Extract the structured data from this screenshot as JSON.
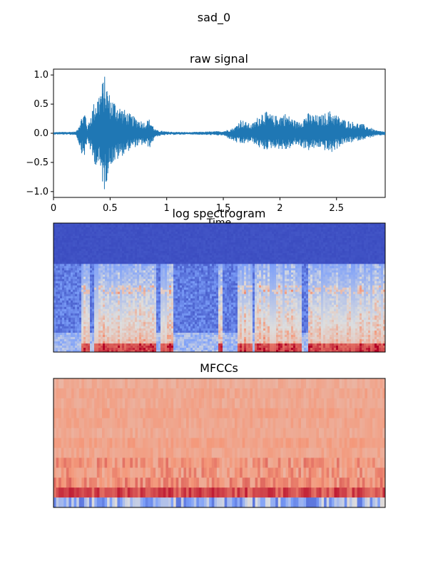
{
  "figure": {
    "title": "sad_0"
  },
  "chart_data": [
    {
      "type": "line",
      "title": "raw signal",
      "xlabel": "Time",
      "ylabel": "",
      "xlim": [
        0,
        2.93
      ],
      "ylim": [
        -1.1,
        1.1
      ],
      "x_ticks": [
        0,
        0.5,
        1,
        1.5,
        2,
        2.5
      ],
      "x_tick_labels": [
        "0",
        "0.5",
        "1",
        "1.5",
        "2",
        "2.5"
      ],
      "y_ticks": [
        -1.0,
        -0.5,
        0.0,
        0.5,
        1.0
      ],
      "y_tick_labels": [
        "−1.0",
        "−0.5",
        "0.0",
        "0.5",
        "1.0"
      ],
      "grid": false,
      "series_color": "#1f77b4",
      "envelope": {
        "x": [
          0,
          0.2,
          0.25,
          0.28,
          0.3,
          0.35,
          0.4,
          0.45,
          0.5,
          0.55,
          0.6,
          0.7,
          0.8,
          0.85,
          0.9,
          1.0,
          1.2,
          1.5,
          1.6,
          1.65,
          1.75,
          1.85,
          1.95,
          2.05,
          2.15,
          2.25,
          2.35,
          2.45,
          2.55,
          2.65,
          2.75,
          2.85,
          2.93
        ],
        "upper": [
          0.02,
          0.03,
          0.3,
          0.4,
          0.1,
          0.5,
          0.7,
          1.0,
          0.65,
          0.55,
          0.45,
          0.3,
          0.2,
          0.25,
          0.06,
          0.03,
          0.02,
          0.04,
          0.1,
          0.25,
          0.15,
          0.4,
          0.3,
          0.35,
          0.2,
          0.35,
          0.3,
          0.4,
          0.25,
          0.2,
          0.15,
          0.05,
          0.03
        ],
        "lower": [
          -0.02,
          -0.03,
          -0.35,
          -0.4,
          -0.1,
          -0.5,
          -0.6,
          -1.0,
          -0.55,
          -0.5,
          -0.4,
          -0.25,
          -0.2,
          -0.25,
          -0.06,
          -0.03,
          -0.02,
          -0.04,
          -0.15,
          -0.2,
          -0.15,
          -0.3,
          -0.25,
          -0.3,
          -0.2,
          -0.3,
          -0.25,
          -0.35,
          -0.2,
          -0.15,
          -0.1,
          -0.05,
          -0.03
        ]
      }
    },
    {
      "type": "heatmap",
      "title": "log spectrogram",
      "colormap": "coolwarm",
      "colors": {
        "low": "#3b4cc0",
        "mid": "#dddddd",
        "high": "#b40426"
      },
      "description_values": {
        "active_segments": [
          [
            0.25,
            0.32
          ],
          [
            0.35,
            0.9
          ],
          [
            0.95,
            1.05
          ],
          [
            1.45,
            1.5
          ],
          [
            1.62,
            1.75
          ],
          [
            1.78,
            2.2
          ],
          [
            2.25,
            2.95
          ]
        ]
      }
    },
    {
      "type": "heatmap",
      "title": "MFCCs",
      "colormap": "coolwarm",
      "colors": {
        "low": "#3b4cc0",
        "mid": "#dddddd",
        "high": "#b40426"
      }
    }
  ]
}
